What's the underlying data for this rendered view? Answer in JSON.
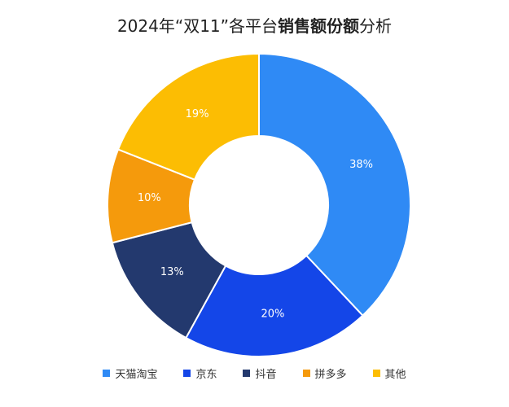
{
  "title": {
    "prefix": "2024年“双11”各平台",
    "bold": "销售额份额",
    "suffix": "分析"
  },
  "chart_data": {
    "type": "pie",
    "title": "2024年“双11”各平台销售额份额分析",
    "donut": true,
    "start": "top, clockwise",
    "legend_position": "bottom",
    "categories": [
      "天猫淘宝",
      "京东",
      "抖音",
      "拼多多",
      "其他"
    ],
    "values": [
      38,
      20,
      13,
      10,
      19
    ],
    "labels": [
      "38%",
      "20%",
      "13%",
      "10%",
      "19%"
    ],
    "colors": [
      "#2f8af5",
      "#1446e8",
      "#23396e",
      "#f59a0c",
      "#fcbd03"
    ]
  }
}
